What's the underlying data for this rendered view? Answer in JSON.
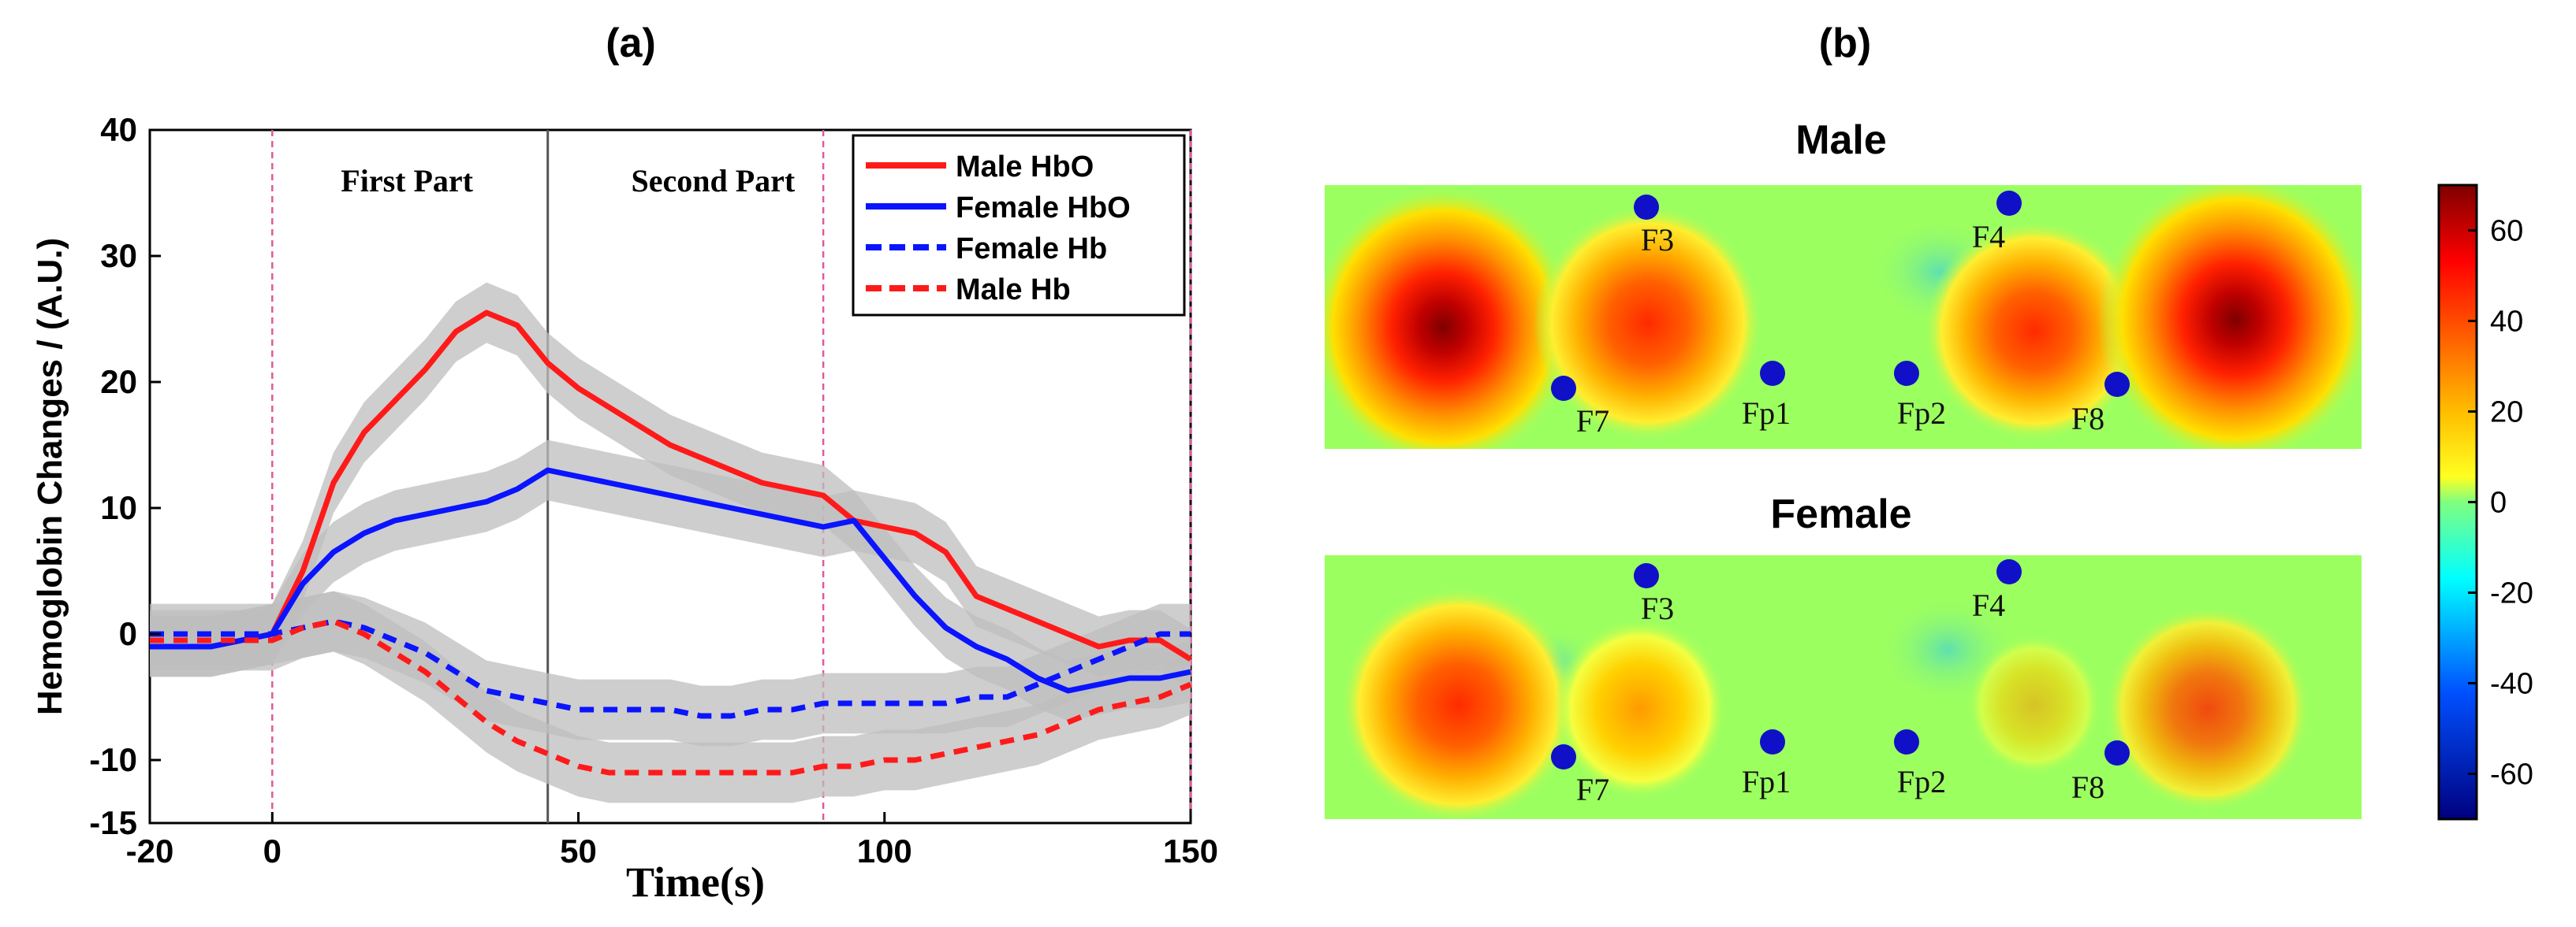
{
  "panel_a": {
    "label": "(a)",
    "chart_data": {
      "type": "line",
      "title": "",
      "xlabel": "Time(s)",
      "ylabel": "Hemoglobin Changes / (A.U.)",
      "xlim": [
        -20,
        150
      ],
      "ylim": [
        -15,
        40
      ],
      "xticks": [
        -20,
        0,
        50,
        100,
        150
      ],
      "yticks": [
        -15,
        -10,
        0,
        10,
        20,
        30,
        40
      ],
      "grid": false,
      "legend_position": "top-right",
      "annotations": [
        {
          "text": "First Part",
          "x": 22,
          "y": 36
        },
        {
          "text": "Second Part",
          "x": 72,
          "y": 36
        }
      ],
      "vlines": [
        {
          "x": 0,
          "style": "dashed-pink"
        },
        {
          "x": 45,
          "style": "solid-gray"
        },
        {
          "x": 90,
          "style": "dashed-pink"
        },
        {
          "x": 150,
          "style": "dashed-pink"
        }
      ],
      "x": [
        -20,
        -10,
        0,
        5,
        10,
        15,
        20,
        25,
        30,
        35,
        40,
        45,
        50,
        55,
        60,
        65,
        70,
        75,
        80,
        85,
        90,
        95,
        100,
        105,
        110,
        115,
        120,
        125,
        130,
        135,
        140,
        145,
        150
      ],
      "series": [
        {
          "name": "Male HbO",
          "color": "#ff1a1a",
          "dash": false,
          "values": [
            -1,
            -1,
            0,
            5,
            12,
            16,
            18.5,
            21,
            24,
            25.5,
            24.5,
            21.5,
            19.5,
            18,
            16.5,
            15,
            14,
            13,
            12,
            11.5,
            11,
            9,
            8.5,
            8,
            6.5,
            3,
            2,
            1,
            0,
            -1,
            -0.5,
            -0.5,
            -2
          ]
        },
        {
          "name": "Female HbO",
          "color": "#0a14ff",
          "dash": false,
          "values": [
            -1,
            -1,
            0,
            4,
            6.5,
            8,
            9,
            9.5,
            10,
            10.5,
            11.5,
            13,
            12.5,
            12,
            11.5,
            11,
            10.5,
            10,
            9.5,
            9,
            8.5,
            9,
            6,
            3,
            0.5,
            -1,
            -2,
            -3.5,
            -4.5,
            -4,
            -3.5,
            -3.5,
            -3
          ]
        },
        {
          "name": "Female Hb",
          "color": "#0a14ff",
          "dash": true,
          "values": [
            0,
            0,
            0,
            0.5,
            1,
            0.5,
            -0.5,
            -1.5,
            -3,
            -4.5,
            -5,
            -5.5,
            -6,
            -6,
            -6,
            -6,
            -6.5,
            -6.5,
            -6,
            -6,
            -5.5,
            -5.5,
            -5.5,
            -5.5,
            -5.5,
            -5,
            -5,
            -4,
            -3,
            -2,
            -1,
            0,
            0
          ]
        },
        {
          "name": "Male Hb",
          "color": "#ff1a1a",
          "dash": true,
          "values": [
            -0.5,
            -0.5,
            -0.5,
            0.5,
            1,
            0,
            -1.5,
            -3,
            -5,
            -7,
            -8.5,
            -9.5,
            -10.5,
            -11,
            -11,
            -11,
            -11,
            -11,
            -11,
            -11,
            -10.5,
            -10.5,
            -10,
            -10,
            -9.5,
            -9,
            -8.5,
            -8,
            -7,
            -6,
            -5.5,
            -5,
            -4
          ]
        }
      ]
    }
  },
  "panel_b": {
    "label": "(b)",
    "maps": [
      {
        "title": "Male"
      },
      {
        "title": "Female"
      }
    ],
    "electrode_labels": [
      "F3",
      "F4",
      "F7",
      "Fp1",
      "Fp2",
      "F8"
    ],
    "chart_data": {
      "type": "heatmap",
      "colorbar_ticks": [
        60,
        40,
        20,
        0,
        -20,
        -40,
        -60
      ],
      "colorbar_range": [
        -70,
        70
      ],
      "hotspots": [
        {
          "map": "Male",
          "location": "left-lateral",
          "value": 70
        },
        {
          "map": "Male",
          "location": "left-medial",
          "value": 45
        },
        {
          "map": "Male",
          "location": "right-medial",
          "value": 40
        },
        {
          "map": "Male",
          "location": "right-lateral",
          "value": 70
        },
        {
          "map": "Male",
          "location": "right-upper (F4 region)",
          "value": -10
        },
        {
          "map": "Female",
          "location": "left-lateral",
          "value": 45
        },
        {
          "map": "Female",
          "location": "left-medial",
          "value": 35
        },
        {
          "map": "Female",
          "location": "right-lateral",
          "value": 35
        },
        {
          "map": "Female",
          "location": "right-center",
          "value": 15
        },
        {
          "map": "Female",
          "location": "right-upper (F4 region)",
          "value": -8
        }
      ]
    }
  }
}
